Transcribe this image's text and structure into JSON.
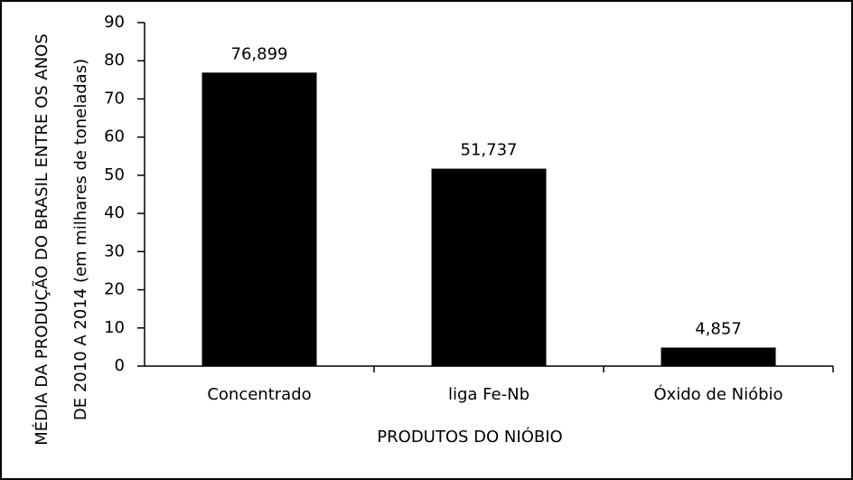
{
  "chart_data": {
    "type": "bar",
    "categories": [
      "Concentrado",
      "liga Fe-Nb",
      "Óxido de Nióbio"
    ],
    "values": [
      76.899,
      51.737,
      4.857
    ],
    "value_labels": [
      "76,899",
      "51,737",
      "4,857"
    ],
    "color": "#000000",
    "xlabel": "PRODUTOS DO NIÓBIO",
    "ylabel": [
      "MÉDIA DA PRODUÇÃO DO BRASIL ENTRE OS ANOS",
      "DE 2010 A 2014 (em milhares de toneladas)"
    ],
    "ylim": [
      0,
      90
    ],
    "yticks": [
      0,
      10,
      20,
      30,
      40,
      50,
      60,
      70,
      80,
      90
    ],
    "grid": false
  }
}
